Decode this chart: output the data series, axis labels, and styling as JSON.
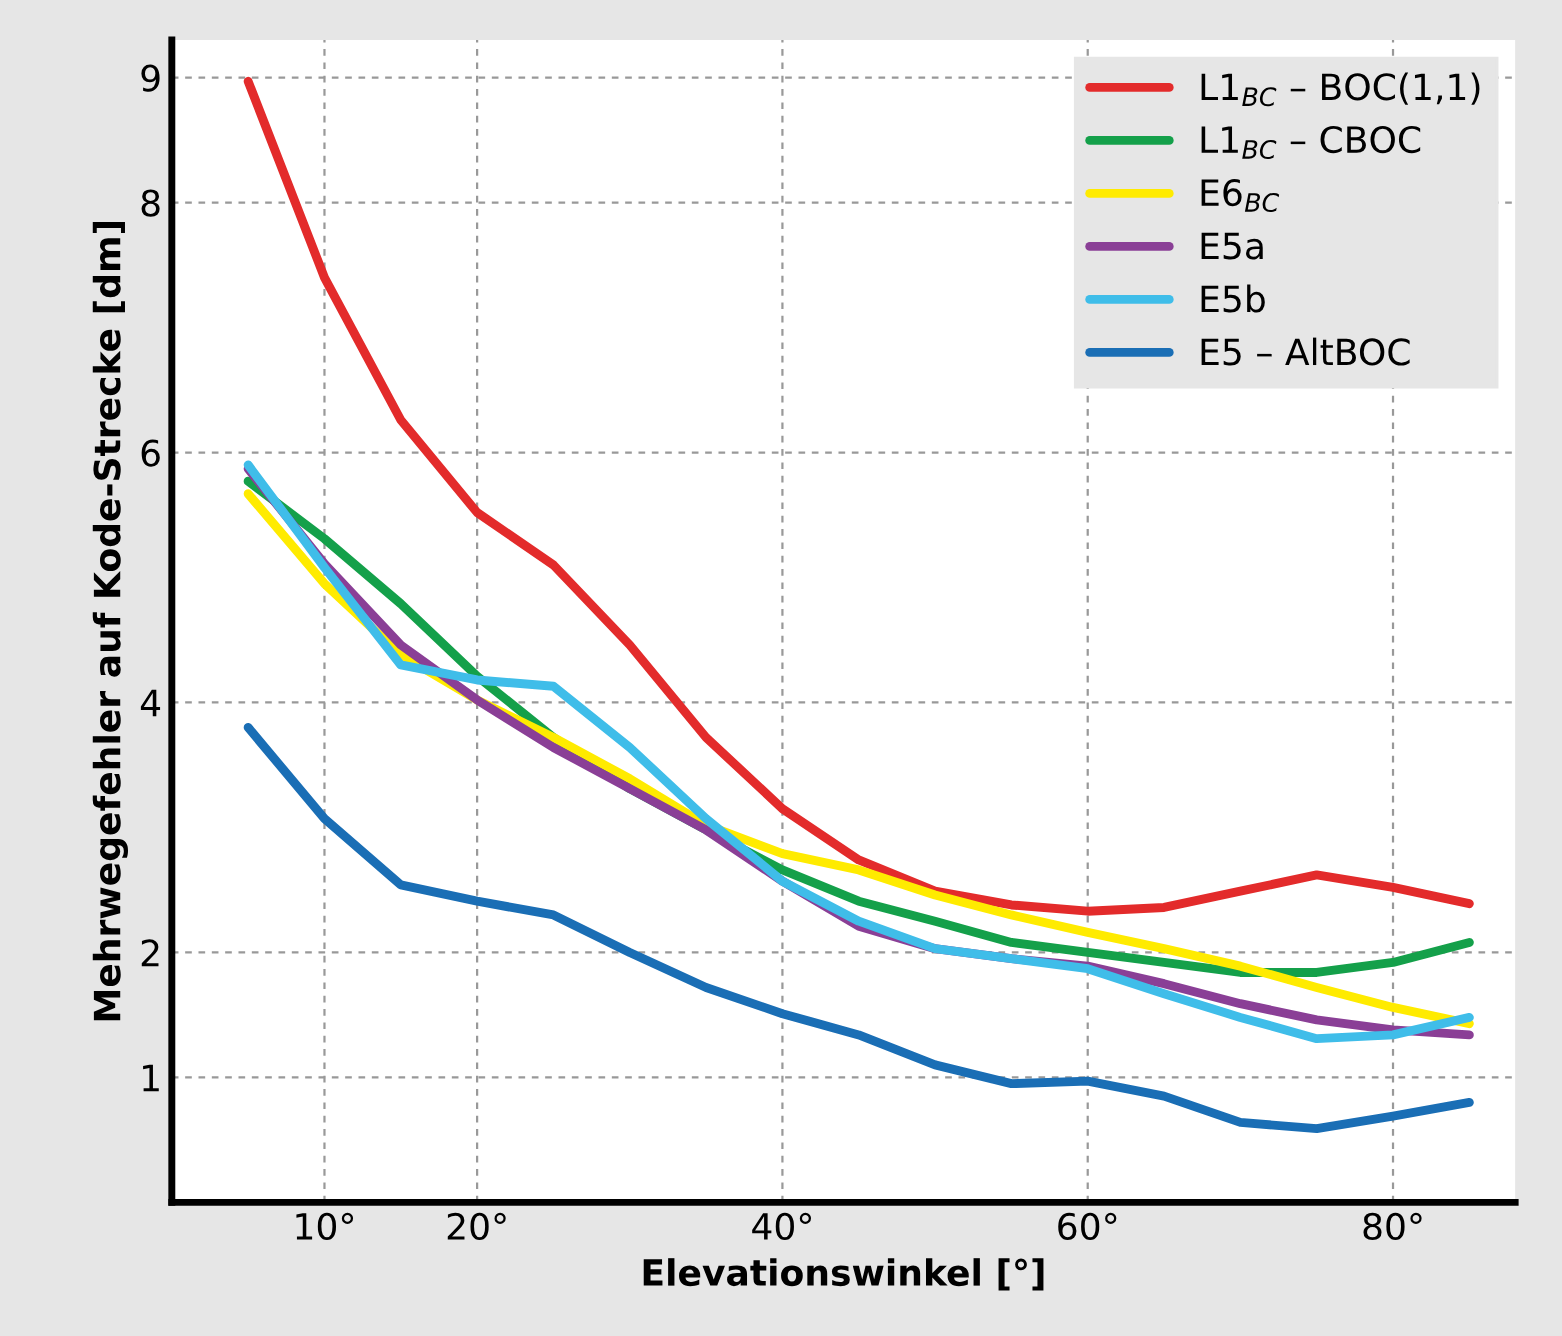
{
  "chart_data": {
    "type": "line",
    "xlabel": "Elevationswinkel [°]",
    "ylabel": "Mehrwegefehler auf Kode-Strecke [dm]",
    "x": [
      5,
      10,
      15,
      20,
      25,
      30,
      35,
      40,
      45,
      50,
      55,
      60,
      65,
      70,
      75,
      80,
      85
    ],
    "series": [
      {
        "name": "L1$_{BC}$ – BOC(1,1)",
        "color": "#e32b2b",
        "values": [
          8.97,
          7.4,
          6.26,
          5.52,
          5.1,
          4.46,
          3.72,
          3.15,
          2.74,
          2.49,
          2.38,
          2.33,
          2.36,
          2.49,
          2.62,
          2.52,
          2.39
        ]
      },
      {
        "name": "L1$_{BC}$ – CBOC",
        "color": "#14a04a",
        "values": [
          5.77,
          5.31,
          4.79,
          4.21,
          3.72,
          3.31,
          2.98,
          2.66,
          2.41,
          2.25,
          2.08,
          2.0,
          1.92,
          1.84,
          1.84,
          1.92,
          2.08
        ]
      },
      {
        "name": "E6$_{BC}$",
        "color": "#ffeb00",
        "values": [
          5.67,
          4.95,
          4.38,
          4.02,
          3.72,
          3.39,
          3.02,
          2.79,
          2.66,
          2.46,
          2.3,
          2.16,
          2.03,
          1.89,
          1.72,
          1.56,
          1.43
        ]
      },
      {
        "name": "E5a",
        "color": "#8a3f96",
        "values": [
          5.87,
          5.11,
          4.46,
          4.02,
          3.64,
          3.31,
          2.98,
          2.57,
          2.21,
          2.03,
          1.95,
          1.89,
          1.75,
          1.59,
          1.46,
          1.38,
          1.34
        ]
      },
      {
        "name": "E5b",
        "color": "#3fbde9",
        "values": [
          5.9,
          5.08,
          4.3,
          4.18,
          4.13,
          3.64,
          3.07,
          2.57,
          2.25,
          2.03,
          1.95,
          1.87,
          1.67,
          1.48,
          1.31,
          1.34,
          1.48
        ]
      },
      {
        "name": "E5 – AltBOC",
        "color": "#1a6eb5",
        "values": [
          3.8,
          3.07,
          2.54,
          2.41,
          2.3,
          2.0,
          1.72,
          1.51,
          1.34,
          1.1,
          0.95,
          0.97,
          0.85,
          0.64,
          0.59,
          0.69,
          0.8
        ]
      }
    ],
    "xlim": [
      0,
      88
    ],
    "ylim": [
      0,
      9.3
    ],
    "xticks": [
      {
        "value": 10,
        "label": "10°"
      },
      {
        "value": 20,
        "label": "20°"
      },
      {
        "value": 40,
        "label": "40°"
      },
      {
        "value": 60,
        "label": "60°"
      },
      {
        "value": 80,
        "label": "80°"
      }
    ],
    "yticks": [
      1,
      2,
      4,
      6,
      8,
      9
    ],
    "grid": true,
    "legend": "top right",
    "marker": "none",
    "line_style": "solid"
  }
}
